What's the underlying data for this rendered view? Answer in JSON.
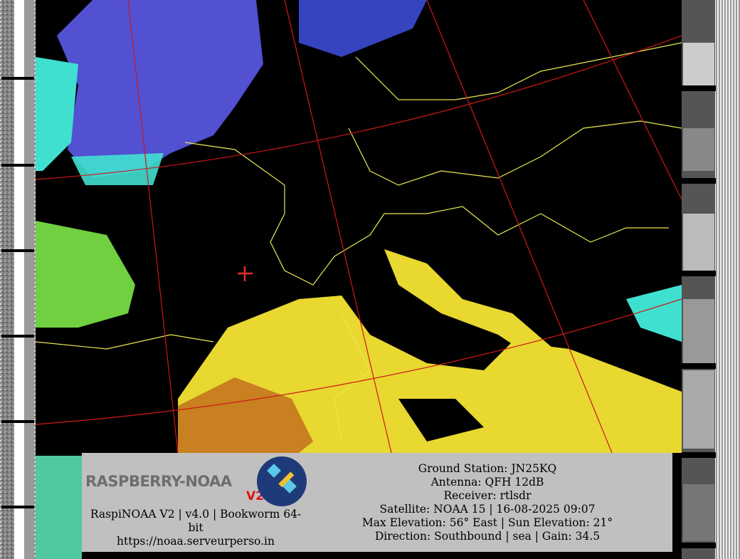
{
  "logo": {
    "text": "RASPBERRY-NOAA",
    "badge": "V2"
  },
  "software": {
    "line1": "RaspiNOAA V2 | v4.0 | Bookworm 64-",
    "line2": "bit",
    "url": "https://noaa.serveurperso.in"
  },
  "pass_info": {
    "ground_station": "Ground Station: JN25KQ",
    "antenna": "Antenna: QFH 12dB",
    "receiver": "Receiver: rtlsdr",
    "satellite": "Satellite: NOAA 15 | 16-08-2025 09:07",
    "elevation": "Max Elevation: 56° East | Sun Elevation: 21°",
    "direction": "Direction: Southbound | sea | Gain: 34.5"
  },
  "colors": {
    "graticule": "#d01818",
    "borders": "#e8e850",
    "ground_marker": "#e03030",
    "panel": "#c0c0c0"
  }
}
